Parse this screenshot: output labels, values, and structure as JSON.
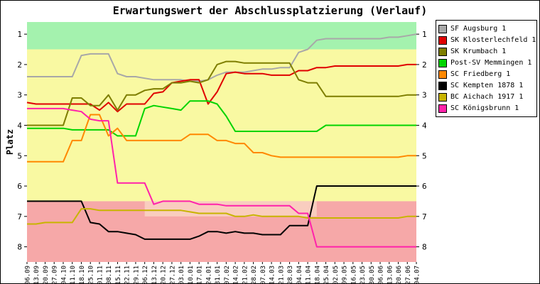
{
  "chart_data": {
    "type": "line",
    "title": "Erwartungswert der Abschlussplatzierung (Verlauf)",
    "ylabel": "Platz",
    "y_inverted": true,
    "y_top": 0.6,
    "y_bottom": 8.5,
    "y_ticks": [
      1,
      2,
      3,
      4,
      5,
      6,
      7,
      8
    ],
    "grid": false,
    "legend_position": "top-right",
    "x": [
      "06.09",
      "13.09",
      "20.09",
      "27.09",
      "04.10",
      "11.10",
      "18.10",
      "25.10",
      "01.11",
      "08.11",
      "15.11",
      "22.11",
      "29.11",
      "06.12",
      "13.12",
      "20.12",
      "27.12",
      "03.01",
      "10.01",
      "17.01",
      "24.01",
      "31.01",
      "07.02",
      "14.02",
      "21.02",
      "28.02",
      "07.03",
      "14.03",
      "21.03",
      "28.03",
      "04.04",
      "11.04",
      "18.04",
      "25.04",
      "02.05",
      "09.05",
      "16.05",
      "23.05",
      "30.05",
      "06.06",
      "13.06",
      "20.06",
      "27.06",
      "04.07"
    ],
    "bands": [
      {
        "name": "promotion",
        "from": 0.6,
        "to": 1.5,
        "color": "#a4f2ae"
      },
      {
        "name": "midfield",
        "from": 1.5,
        "to": 6.5,
        "color": "#f9f9a2"
      },
      {
        "name": "relegation",
        "from": 6.5,
        "to": 8.5,
        "color": "#f6a8a8"
      }
    ],
    "relegation_overlay": {
      "name": "relegation-border",
      "from": 6.5,
      "to": 7.0,
      "from_index": 13,
      "to_index": 32,
      "color": "#f9cdbf"
    },
    "series": [
      {
        "name": "SF Augsburg 1",
        "color": "#a8a8a8",
        "values": [
          2.4,
          2.4,
          2.4,
          2.4,
          2.4,
          2.4,
          1.7,
          1.65,
          1.65,
          1.65,
          2.3,
          2.4,
          2.4,
          2.45,
          2.5,
          2.5,
          2.5,
          2.5,
          2.55,
          2.55,
          2.5,
          2.35,
          2.25,
          2.25,
          2.25,
          2.2,
          2.15,
          2.15,
          2.1,
          2.1,
          1.6,
          1.5,
          1.2,
          1.15,
          1.15,
          1.15,
          1.15,
          1.15,
          1.15,
          1.15,
          1.1,
          1.1,
          1.05,
          1.0
        ]
      },
      {
        "name": "SK Klosterlechfeld 1",
        "color": "#e00000",
        "values": [
          3.25,
          3.3,
          3.3,
          3.3,
          3.3,
          3.3,
          3.3,
          3.3,
          3.5,
          3.25,
          3.55,
          3.3,
          3.3,
          3.3,
          2.95,
          2.9,
          2.6,
          2.55,
          2.5,
          2.5,
          3.3,
          2.9,
          2.3,
          2.25,
          2.3,
          2.3,
          2.3,
          2.35,
          2.35,
          2.35,
          2.2,
          2.2,
          2.1,
          2.1,
          2.05,
          2.05,
          2.05,
          2.05,
          2.05,
          2.05,
          2.05,
          2.05,
          2.0,
          2.0
        ]
      },
      {
        "name": "SK Krumbach 1",
        "color": "#7e7e00",
        "values": [
          4.0,
          4.0,
          4.0,
          4.0,
          4.0,
          3.1,
          3.1,
          3.35,
          3.35,
          3.0,
          3.5,
          3.0,
          3.0,
          2.85,
          2.8,
          2.8,
          2.6,
          2.6,
          2.55,
          2.6,
          2.5,
          2.0,
          1.9,
          1.9,
          1.95,
          1.95,
          1.95,
          1.95,
          1.95,
          1.95,
          2.5,
          2.6,
          2.6,
          3.05,
          3.05,
          3.05,
          3.05,
          3.05,
          3.05,
          3.05,
          3.05,
          3.05,
          3.0,
          3.0
        ]
      },
      {
        "name": "Post-SV Memmingen 1",
        "color": "#00d400",
        "values": [
          4.1,
          4.1,
          4.1,
          4.1,
          4.1,
          4.15,
          4.15,
          4.15,
          4.15,
          4.15,
          4.35,
          4.35,
          4.35,
          3.45,
          3.35,
          3.4,
          3.45,
          3.5,
          3.2,
          3.2,
          3.2,
          3.3,
          3.7,
          4.2,
          4.2,
          4.2,
          4.2,
          4.2,
          4.2,
          4.2,
          4.2,
          4.2,
          4.2,
          4.0,
          4.0,
          4.0,
          4.0,
          4.0,
          4.0,
          4.0,
          4.0,
          4.0,
          4.0,
          4.0
        ]
      },
      {
        "name": "SC Friedberg 1",
        "color": "#ff8800",
        "values": [
          5.2,
          5.2,
          5.2,
          5.2,
          5.2,
          4.5,
          4.5,
          3.65,
          3.65,
          4.35,
          4.1,
          4.5,
          4.5,
          4.5,
          4.5,
          4.5,
          4.5,
          4.5,
          4.3,
          4.3,
          4.3,
          4.5,
          4.5,
          4.6,
          4.6,
          4.9,
          4.9,
          5.0,
          5.05,
          5.05,
          5.05,
          5.05,
          5.05,
          5.05,
          5.05,
          5.05,
          5.05,
          5.05,
          5.05,
          5.05,
          5.05,
          5.05,
          5.0,
          5.0
        ]
      },
      {
        "name": "SC Kempten 1878 1",
        "color": "#000000",
        "values": [
          6.5,
          6.5,
          6.5,
          6.5,
          6.5,
          6.5,
          6.5,
          7.2,
          7.25,
          7.5,
          7.5,
          7.55,
          7.6,
          7.75,
          7.75,
          7.75,
          7.75,
          7.75,
          7.75,
          7.65,
          7.5,
          7.5,
          7.55,
          7.5,
          7.55,
          7.55,
          7.6,
          7.6,
          7.6,
          7.3,
          7.3,
          7.3,
          6.0,
          6.0,
          6.0,
          6.0,
          6.0,
          6.0,
          6.0,
          6.0,
          6.0,
          6.0,
          6.0,
          6.0
        ]
      },
      {
        "name": "BC Aichach 1917 1",
        "color": "#c8b400",
        "values": [
          7.25,
          7.25,
          7.2,
          7.2,
          7.2,
          7.2,
          6.75,
          6.75,
          6.8,
          6.8,
          6.8,
          6.8,
          6.8,
          6.8,
          6.8,
          6.8,
          6.8,
          6.8,
          6.85,
          6.9,
          6.9,
          6.9,
          6.9,
          7.0,
          7.0,
          6.95,
          7.0,
          7.0,
          7.0,
          7.0,
          7.0,
          7.05,
          7.05,
          7.05,
          7.05,
          7.05,
          7.05,
          7.05,
          7.05,
          7.05,
          7.05,
          7.05,
          7.0,
          7.0
        ]
      },
      {
        "name": "SC Königsbrunn 1",
        "color": "#ff22aa",
        "values": [
          3.45,
          3.45,
          3.45,
          3.45,
          3.45,
          3.5,
          3.55,
          3.8,
          3.85,
          3.85,
          5.9,
          5.9,
          5.9,
          5.9,
          6.6,
          6.5,
          6.5,
          6.5,
          6.5,
          6.6,
          6.6,
          6.6,
          6.65,
          6.65,
          6.65,
          6.65,
          6.65,
          6.65,
          6.65,
          6.65,
          6.9,
          6.9,
          8.0,
          8.0,
          8.0,
          8.0,
          8.0,
          8.0,
          8.0,
          8.0,
          8.0,
          8.0,
          8.0,
          8.0
        ]
      }
    ]
  }
}
